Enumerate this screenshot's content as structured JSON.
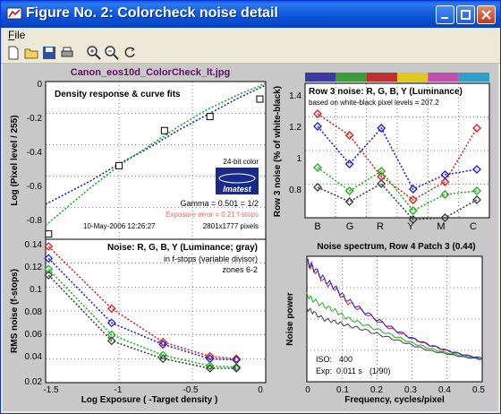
{
  "window": {
    "title": "Figure No. 2: Colorcheck noise detail",
    "minimize_icon": "minimize-icon",
    "maximize_icon": "maximize-icon",
    "close_icon": "close-icon"
  },
  "menu": {
    "file_label": "File"
  },
  "toolbar": {
    "icons": [
      "new-file-icon",
      "open-folder-icon",
      "save-icon",
      "print-icon",
      "zoom-in-icon",
      "zoom-out-icon",
      "rotate-icon"
    ]
  },
  "figure": {
    "file_title": "Canon_eos10d_ColorCheck_lt.jpg",
    "density": {
      "title": "Density response & curve fits",
      "ylabel": "Log (Pixel level / 255)",
      "bitdepth": "24-bit color",
      "logo": "Imatest",
      "gamma": "Gamma = 0.501 = 1/2",
      "exposure_error": "Exposure error = 0.21 f-stops",
      "date": "10-May-2006 12:26:27",
      "pixels": "2801x1777 pixels",
      "yticks": [
        "0",
        "-0.2",
        "-0.4",
        "-0.6",
        "-0.8"
      ]
    },
    "noise": {
      "title": "Noise: R, G, B, Y (Luminance; gray)",
      "subtitle1": "in f-stops (variable divisor)",
      "subtitle2": "zones 6-2",
      "ylabel": "RMS noise (f-stops)",
      "xlabel": "Log Exposure ( -Target density )",
      "yticks": [
        "0.14",
        "0.12",
        "0.1",
        "0.08",
        "0.06",
        "0.04",
        "0.02"
      ],
      "xticks": [
        "-1.5",
        "-1",
        "-0.5",
        "0"
      ]
    },
    "row3": {
      "title": "Row 3 noise: R, G, B, Y (Luminance)",
      "subtitle": "based on white-black pixel levels = 207.2",
      "ylabel": "Row 3 noise (% of white-black)",
      "yticks": [
        "1.4",
        "1.2",
        "1",
        "0.8"
      ],
      "xticks": [
        "B",
        "G",
        "R",
        "Y",
        "M",
        "C"
      ],
      "swatches": [
        "#3a3aa0",
        "#3c9c3c",
        "#c03030",
        "#e0c820",
        "#c050b0",
        "#30a0c8"
      ]
    },
    "spectrum": {
      "title": "Noise spectrum, Row 4 Patch 3 (0.44)",
      "ylabel": "Noise power",
      "xlabel": "Frequency, cycles/pixel",
      "iso_label": "ISO:",
      "iso_value": "400",
      "exp_label": "Exp:",
      "exp_value": "0.011 s",
      "exp_fraction": "(1/90)",
      "xticks": [
        "0",
        "0.1",
        "0.2",
        "0.3",
        "0.4",
        "0.5"
      ]
    }
  },
  "chart_data": [
    {
      "type": "line",
      "title": "Density response & curve fits",
      "xlabel": "",
      "ylabel": "Log (Pixel level / 255)",
      "xlim": [
        -1.5,
        0
      ],
      "ylim": [
        -0.9,
        0
      ],
      "grid": true,
      "series": [
        {
          "color": "#2020d0",
          "style": "dotted",
          "x": [
            -1.5,
            -1.2,
            -1.0,
            -0.8,
            -0.6,
            -0.4,
            -0.2,
            0.0
          ],
          "y": [
            -0.7,
            -0.57,
            -0.47,
            -0.38,
            -0.28,
            -0.19,
            -0.1,
            -0.02
          ]
        },
        {
          "color": "#10b010",
          "style": "dotted",
          "x": [
            -1.5,
            -1.2,
            -1.0,
            -0.8,
            -0.6,
            -0.4,
            -0.2,
            0.0
          ],
          "y": [
            -0.82,
            -0.61,
            -0.48,
            -0.37,
            -0.26,
            -0.16,
            -0.08,
            -0.01
          ]
        }
      ],
      "markers": {
        "x": [
          -1.48,
          -1.0,
          -0.69,
          -0.38,
          -0.04
        ],
        "y": [
          -0.87,
          -0.48,
          -0.28,
          -0.2,
          -0.1
        ]
      }
    },
    {
      "type": "line",
      "title": "Noise: R, G, B, Y (Luminance; gray)",
      "xlabel": "Log Exposure ( -Target density )",
      "ylabel": "RMS noise (f-stops)",
      "xlim": [
        -1.5,
        0
      ],
      "ylim": [
        0.02,
        0.14
      ],
      "grid": true,
      "x": [
        -1.48,
        -1.05,
        -0.7,
        -0.38,
        -0.2
      ],
      "series": [
        {
          "color": "#e02020",
          "values": [
            0.134,
            0.082,
            0.054,
            0.042,
            0.04
          ]
        },
        {
          "color": "#2020e0",
          "values": [
            0.124,
            0.07,
            0.052,
            0.04,
            0.039
          ]
        },
        {
          "color": "#20b020",
          "values": [
            0.115,
            0.06,
            0.043,
            0.034,
            0.033
          ]
        },
        {
          "color": "#404040",
          "values": [
            0.11,
            0.055,
            0.04,
            0.032,
            0.032
          ]
        }
      ]
    },
    {
      "type": "line",
      "title": "Row 3 noise: R, G, B, Y (Luminance)",
      "xlabel": "",
      "ylabel": "Row 3 noise (% of white-black)",
      "ylim": [
        0.7,
        1.45
      ],
      "grid": true,
      "categories": [
        "B",
        "G",
        "R",
        "Y",
        "M",
        "C"
      ],
      "series": [
        {
          "color": "#e02020",
          "values": [
            1.28,
            1.16,
            0.93,
            0.8,
            0.9,
            1.2
          ]
        },
        {
          "color": "#2020e0",
          "values": [
            1.21,
            1.0,
            1.2,
            0.86,
            0.94,
            0.97
          ]
        },
        {
          "color": "#20b020",
          "values": [
            0.98,
            0.85,
            0.96,
            0.74,
            0.83,
            0.85
          ]
        },
        {
          "color": "#404040",
          "values": [
            0.87,
            0.79,
            0.89,
            0.69,
            0.7,
            0.8
          ]
        }
      ]
    },
    {
      "type": "line",
      "title": "Noise spectrum, Row 4 Patch 3 (0.44)",
      "xlabel": "Frequency, cycles/pixel",
      "ylabel": "Noise power",
      "xlim": [
        0,
        0.5
      ],
      "grid": true,
      "x": [
        0.0,
        0.02,
        0.05,
        0.08,
        0.11,
        0.15,
        0.2,
        0.25,
        0.3,
        0.35,
        0.4,
        0.45,
        0.5
      ],
      "series": [
        {
          "color": "#e02020",
          "values": [
            1.0,
            0.93,
            0.82,
            0.76,
            0.65,
            0.57,
            0.47,
            0.38,
            0.31,
            0.25,
            0.2,
            0.16,
            0.13
          ]
        },
        {
          "color": "#2020e0",
          "values": [
            1.0,
            0.94,
            0.84,
            0.77,
            0.67,
            0.58,
            0.48,
            0.39,
            0.31,
            0.25,
            0.2,
            0.16,
            0.13
          ]
        },
        {
          "color": "#20b020",
          "values": [
            0.7,
            0.65,
            0.6,
            0.56,
            0.5,
            0.45,
            0.39,
            0.33,
            0.27,
            0.22,
            0.18,
            0.15,
            0.12
          ]
        },
        {
          "color": "#404040",
          "values": [
            0.58,
            0.54,
            0.48,
            0.46,
            0.43,
            0.4,
            0.35,
            0.3,
            0.25,
            0.2,
            0.17,
            0.14,
            0.12
          ]
        }
      ]
    }
  ]
}
